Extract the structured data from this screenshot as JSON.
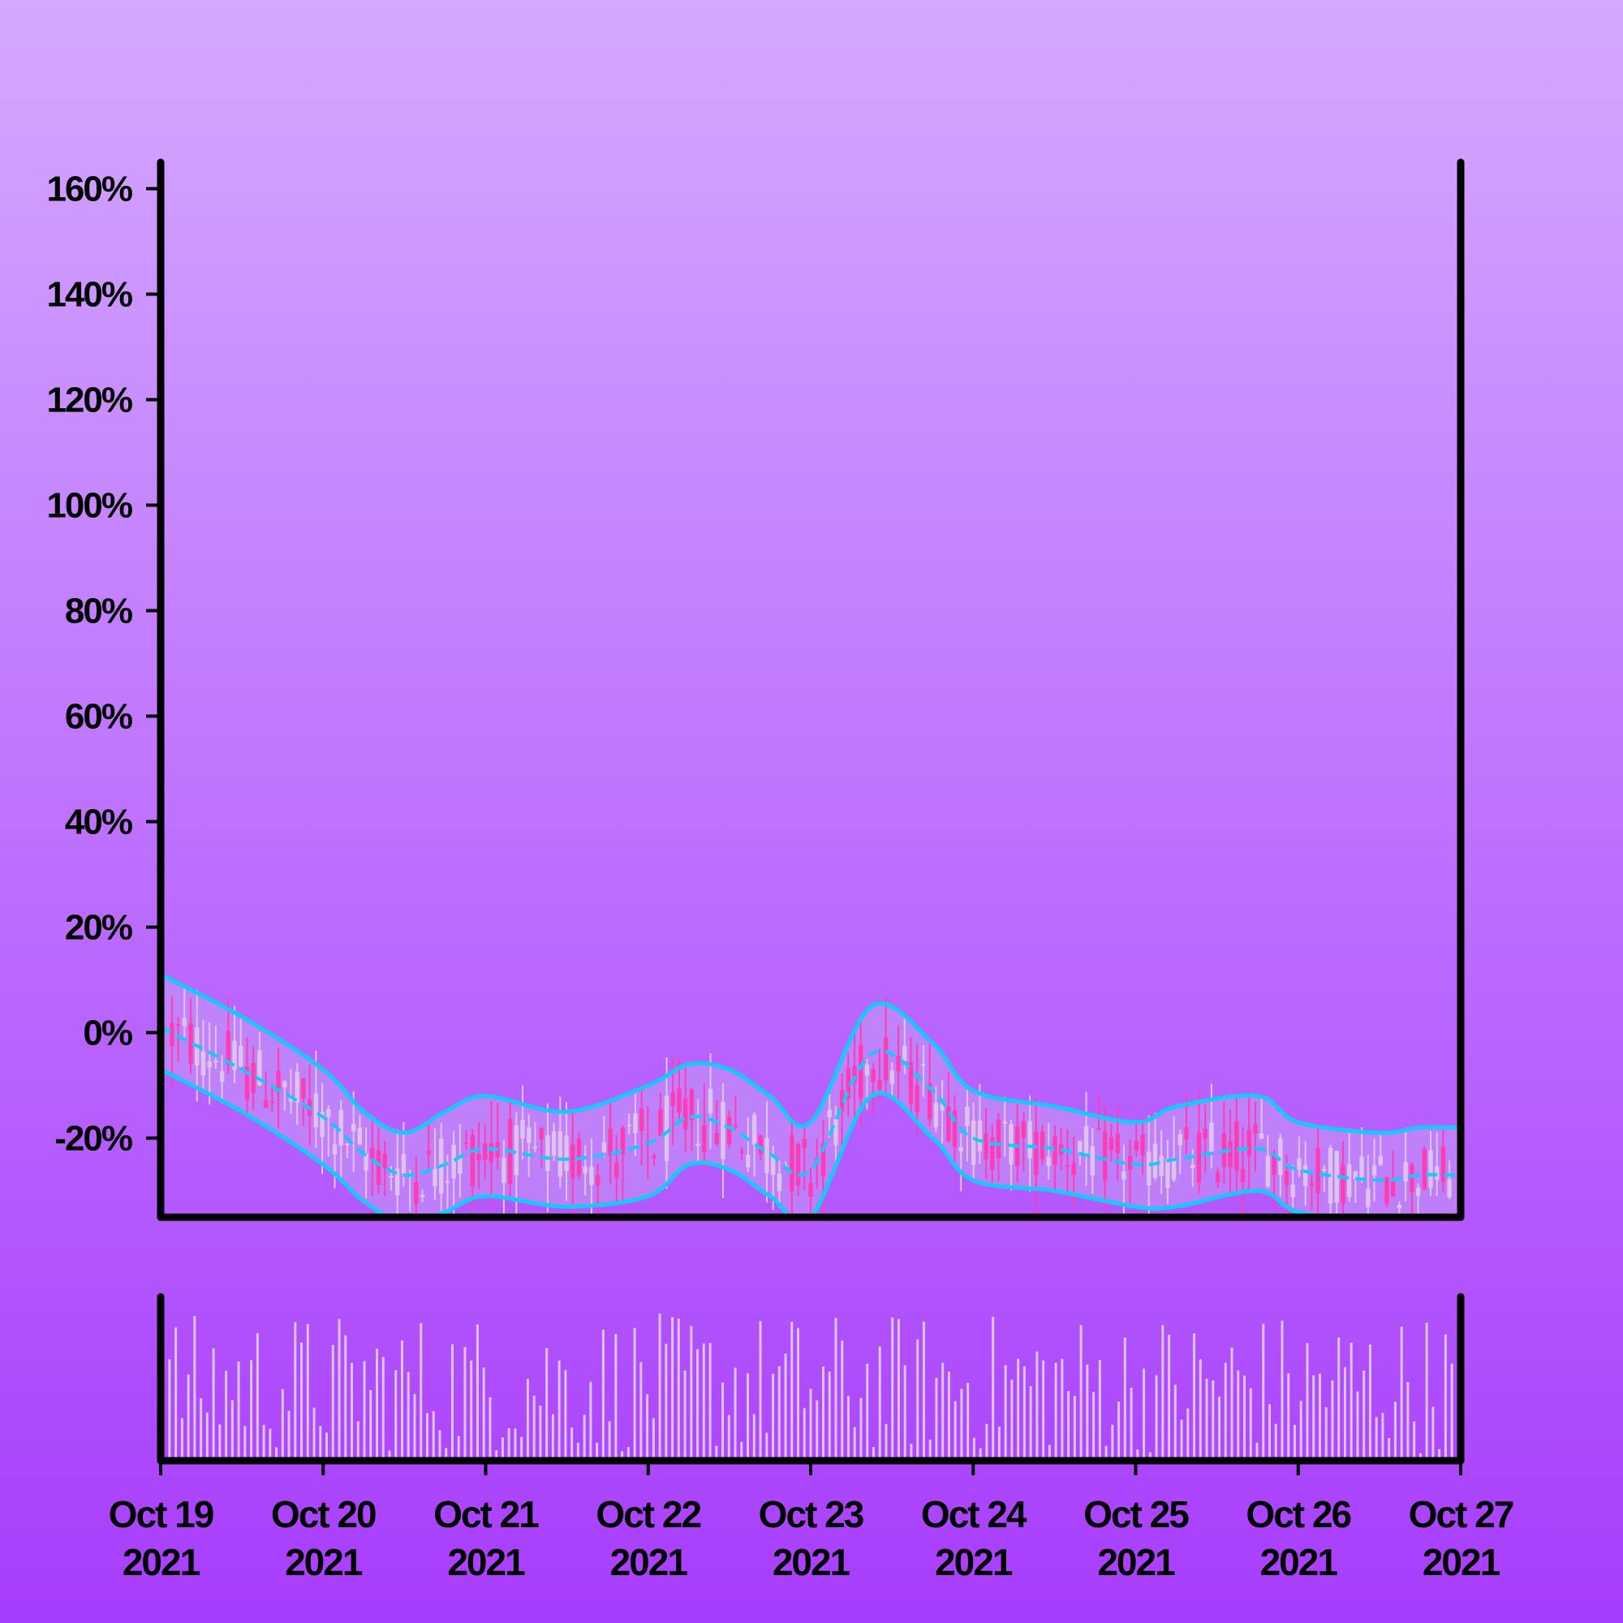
{
  "chart_data": {
    "type": "candlestick",
    "colors": {
      "background_top": "#d4a8ff",
      "background_bottom": "#a83dfd",
      "axis": "#000000",
      "band_line": "#18c8f8",
      "band_fill": "#c79df5",
      "candle_up": "#e0c2ee",
      "candle_down": "#ff3cb4",
      "volume_bar": "#e0c2ee"
    },
    "x_ticks": [
      {
        "date": "2021-10-19",
        "line1": "Oct 19",
        "line2": "2021"
      },
      {
        "date": "2021-10-20",
        "line1": "Oct 20",
        "line2": "2021"
      },
      {
        "date": "2021-10-21",
        "line1": "Oct 21",
        "line2": "2021"
      },
      {
        "date": "2021-10-22",
        "line1": "Oct 22",
        "line2": "2021"
      },
      {
        "date": "2021-10-23",
        "line1": "Oct 23",
        "line2": "2021"
      },
      {
        "date": "2021-10-24",
        "line1": "Oct 24",
        "line2": "2021"
      },
      {
        "date": "2021-10-25",
        "line1": "Oct 25",
        "line2": "2021"
      },
      {
        "date": "2021-10-26",
        "line1": "Oct 26",
        "line2": "2021"
      },
      {
        "date": "2021-10-27",
        "line1": "Oct 27",
        "line2": "2021"
      }
    ],
    "y_ticks": [
      {
        "value": 160,
        "label": "160%"
      },
      {
        "value": 140,
        "label": "140%"
      },
      {
        "value": 120,
        "label": "120%"
      },
      {
        "value": 100,
        "label": "100%"
      },
      {
        "value": 80,
        "label": "80%"
      },
      {
        "value": 60,
        "label": "60%"
      },
      {
        "value": 40,
        "label": "40%"
      },
      {
        "value": 20,
        "label": "20%"
      },
      {
        "value": 0,
        "label": "0%"
      },
      {
        "value": -20,
        "label": "-20%"
      }
    ],
    "xlim": [
      "2021-10-19",
      "2021-10-27"
    ],
    "ylim": [
      -35,
      165
    ],
    "y_unit": "%",
    "grid": false,
    "legend": "none",
    "bollinger": {
      "x": [
        "2021-10-19 00:00",
        "2021-10-19 12:00",
        "2021-10-20 00:00",
        "2021-10-20 06:00",
        "2021-10-20 12:00",
        "2021-10-20 18:00",
        "2021-10-21 00:00",
        "2021-10-21 12:00",
        "2021-10-22 00:00",
        "2021-10-22 06:00",
        "2021-10-22 12:00",
        "2021-10-22 18:00",
        "2021-10-23 00:00",
        "2021-10-23 09:00",
        "2021-10-23 18:00",
        "2021-10-24 00:00",
        "2021-10-24 12:00",
        "2021-10-25 00:00",
        "2021-10-25 06:00",
        "2021-10-25 18:00",
        "2021-10-26 00:00",
        "2021-10-26 12:00",
        "2021-10-26 18:00",
        "2021-10-27 00:00"
      ],
      "upper": [
        11,
        3,
        -7,
        -15,
        -19,
        -15,
        -12,
        -15,
        -10,
        -6,
        -7,
        -12,
        -17,
        5,
        -2,
        -11,
        -14,
        -17,
        -14,
        -12,
        -17,
        -19,
        -18,
        -18
      ],
      "middle": [
        1,
        -7,
        -16,
        -23,
        -27,
        -25,
        -22,
        -24,
        -21,
        -16,
        -18,
        -23,
        -26,
        -4,
        -11,
        -20,
        -22,
        -25,
        -24,
        -22,
        -26,
        -28,
        -27,
        -27
      ],
      "lower": [
        -7,
        -15,
        -25,
        -32,
        -36,
        -34,
        -31,
        -33,
        -31,
        -25,
        -26,
        -31,
        -35,
        -12,
        -20,
        -28,
        -30,
        -33,
        -33,
        -30,
        -34,
        -36,
        -35,
        -35
      ]
    },
    "candle_count": 205,
    "volume_range": [
      0,
      1
    ]
  }
}
